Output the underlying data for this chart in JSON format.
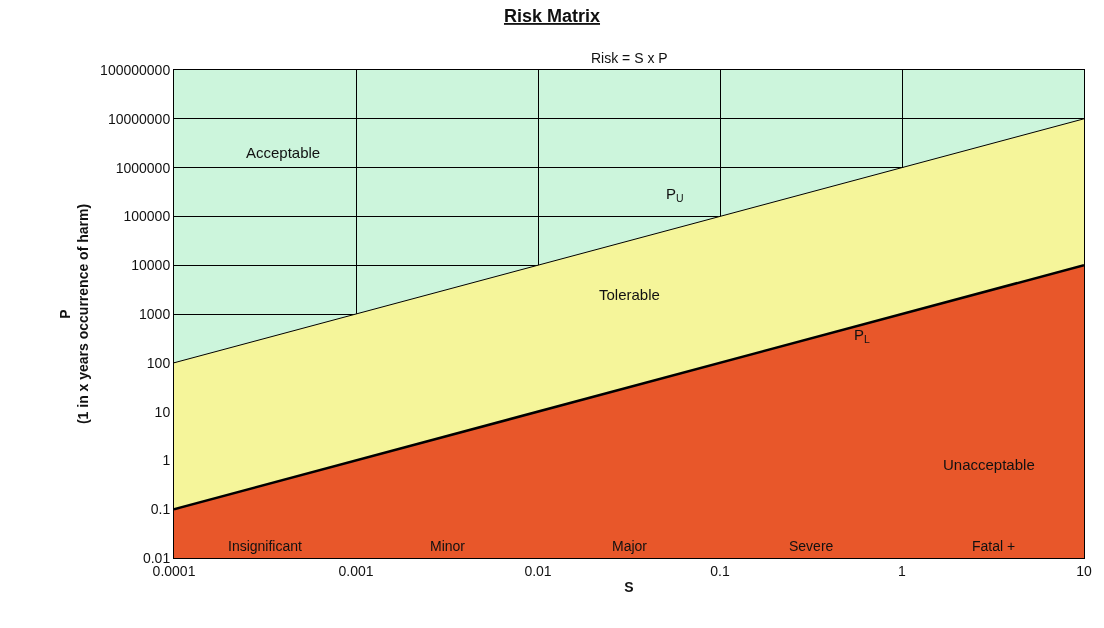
{
  "chart_data": {
    "type": "area",
    "title": "Risk Matrix",
    "subtitle": "Risk = S x P",
    "xlabel": "S",
    "ylabel": "P\n(1 in x years occurrence of harm)",
    "x": [
      0.0001,
      10
    ],
    "series": [
      {
        "name": "Tolerable",
        "color": "#f5f59a",
        "values": [
          100,
          10000000
        ]
      },
      {
        "name": "Unacceptable",
        "color": "#e8572a",
        "values": [
          0.1,
          10000
        ]
      }
    ],
    "log": "xy",
    "grid": true,
    "legend": false,
    "xlim": [
      0.0001,
      10
    ],
    "xticks": [
      0.0001,
      0.001,
      0.01,
      0.1,
      1,
      10
    ],
    "ylim": [
      0.01,
      100000000
    ],
    "yticks": [
      0.01,
      0.1,
      1,
      10,
      100,
      1000,
      10000,
      100000,
      1000000,
      10000000,
      100000000
    ],
    "bands": [
      {
        "axis": "y",
        "from": 0.01,
        "to": 100000000,
        "color": "#ccf5dc"
      }
    ],
    "annotations": [
      "Insignificant",
      "Minor",
      "Major",
      "Severe",
      "Fatal +",
      "Acceptable",
      "P$_{U}$",
      "P$_{L}$"
    ]
  }
}
